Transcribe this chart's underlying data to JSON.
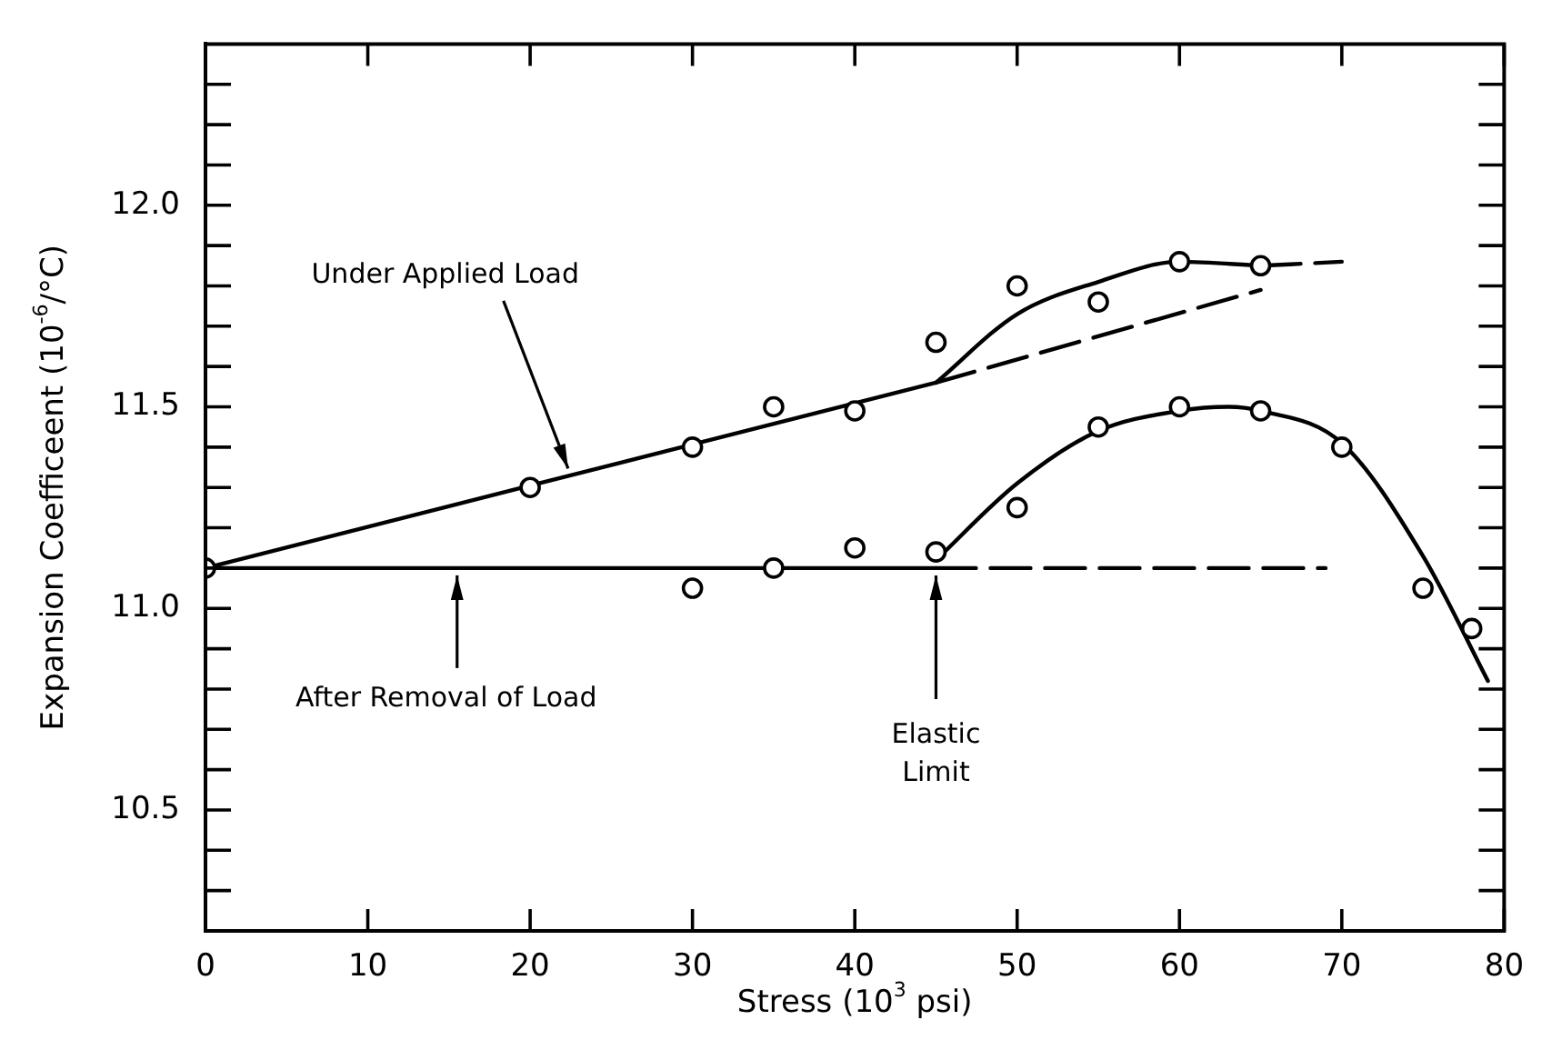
{
  "chart_data": {
    "type": "scatter",
    "xlabel": "Stress (10$^{3}$ psi)",
    "ylabel": "Expansion Coefficeent (10$^{-6}$/°C)",
    "xlim": [
      0,
      80
    ],
    "xticks": [
      0,
      10,
      20,
      30,
      40,
      50,
      60,
      70,
      80
    ],
    "ylim": [
      10.2,
      12.4
    ],
    "yticks": [
      {
        "value": 10.3,
        "label": null
      },
      {
        "value": 10.4,
        "label": null
      },
      10.5,
      {
        "value": 10.6,
        "label": null
      },
      {
        "value": 10.7,
        "label": null
      },
      {
        "value": 10.8,
        "label": null
      },
      {
        "value": 10.9,
        "label": null
      },
      {
        "value": 11.0,
        "label": "11.0"
      },
      {
        "value": 11.1,
        "label": null
      },
      {
        "value": 11.2,
        "label": null
      },
      {
        "value": 11.3,
        "label": null
      },
      {
        "value": 11.4,
        "label": null
      },
      11.5,
      {
        "value": 11.6,
        "label": null
      },
      {
        "value": 11.7,
        "label": null
      },
      {
        "value": 11.8,
        "label": null
      },
      {
        "value": 11.9,
        "label": null
      },
      {
        "value": 12.0,
        "label": "12.0"
      },
      {
        "value": 12.1,
        "label": null
      },
      {
        "value": 12.2,
        "label": null
      },
      {
        "value": 12.3,
        "label": null
      }
    ],
    "grid": false,
    "legend": false,
    "series": [
      {
        "type": "scatter",
        "color": "#000000",
        "marker": "circle",
        "x": [
          0,
          20,
          30,
          35,
          40,
          45,
          50,
          55,
          60,
          65
        ],
        "values": [
          11.1,
          11.3,
          11.4,
          11.5,
          11.49,
          11.66,
          11.8,
          11.76,
          11.86,
          11.85
        ]
      },
      {
        "type": "scatter",
        "color": "#000000",
        "marker": "circle",
        "x": [
          30,
          35,
          40,
          45,
          50,
          55,
          60,
          65,
          70,
          75,
          78
        ],
        "values": [
          11.05,
          11.1,
          11.15,
          11.14,
          11.25,
          11.45,
          11.5,
          11.49,
          11.4,
          11.05,
          10.95
        ]
      },
      {
        "type": "line",
        "color": "#000000",
        "marker": "none",
        "line_style": "solid",
        "x": [
          0,
          45
        ],
        "values": [
          11.1,
          11.56
        ]
      },
      {
        "type": "line",
        "color": "#000000",
        "marker": "none",
        "line_style": "dashed",
        "x": [
          45,
          65
        ],
        "values": [
          11.56,
          11.79
        ]
      },
      {
        "type": "line",
        "color": "#000000",
        "marker": "none",
        "line_style": "solid",
        "x": [
          45,
          50,
          55,
          60,
          65
        ],
        "values": [
          11.56,
          11.73,
          11.81,
          11.86,
          11.85
        ]
      },
      {
        "type": "line",
        "color": "#000000",
        "marker": "none",
        "line_style": "dashed",
        "x": [
          65,
          70
        ],
        "values": [
          11.85,
          11.86
        ]
      },
      {
        "type": "line",
        "color": "#000000",
        "marker": "none",
        "line_style": "solid",
        "x": [
          0,
          45
        ],
        "values": [
          11.1,
          11.1
        ]
      },
      {
        "type": "line",
        "color": "#000000",
        "marker": "none",
        "line_style": "dashed",
        "x": [
          45,
          69
        ],
        "values": [
          11.1,
          11.1
        ]
      },
      {
        "type": "line",
        "color": "#000000",
        "marker": "none",
        "line_style": "solid",
        "x": [
          45,
          50,
          55,
          60,
          63,
          65,
          70,
          75,
          79
        ],
        "values": [
          11.12,
          11.31,
          11.44,
          11.49,
          11.5,
          11.49,
          11.41,
          11.13,
          10.82
        ]
      }
    ],
    "annotations": [
      {
        "text": "Under Applied Load",
        "x": 22.5,
        "y": 11.33
      },
      {
        "text": "After Removal of Load",
        "x": 15.5,
        "y": 11.1
      },
      {
        "text": "Elastic Limit",
        "x": 45,
        "y": 11.1
      }
    ]
  }
}
